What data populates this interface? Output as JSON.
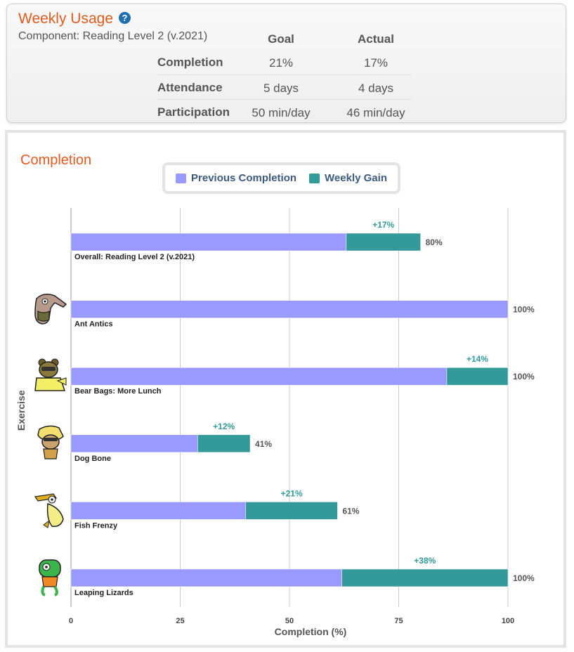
{
  "usage": {
    "title": "Weekly Usage",
    "help_icon": "question-circle-icon",
    "component": "Component: Reading Level 2 (v.2021)",
    "columns": [
      "Goal",
      "Actual"
    ],
    "rows": [
      {
        "label": "Completion",
        "goal": "21%",
        "actual": "17%"
      },
      {
        "label": "Attendance",
        "goal": "5 days",
        "actual": "4 days"
      },
      {
        "label": "Participation",
        "goal": "50 min/day",
        "actual": "46 min/day"
      }
    ]
  },
  "chart": {
    "title": "Completion",
    "legend": {
      "previous": "Previous Completion",
      "gain": "Weekly Gain"
    },
    "colors": {
      "previous": "#9999ff",
      "gain": "#339999",
      "accent": "#e35a1e"
    }
  },
  "chart_data": {
    "type": "bar",
    "orientation": "horizontal",
    "stacked": true,
    "title": "Completion",
    "xlabel": "Completion (%)",
    "ylabel": "Exercise",
    "xlim": [
      0,
      100
    ],
    "xticks": [
      "0",
      "25",
      "50",
      "75",
      "100"
    ],
    "grid": true,
    "legend_position": "top-center",
    "categories": [
      "Overall: Reading Level 2 (v.2021)",
      "Ant Antics",
      "Bear Bags: More Lunch",
      "Dog Bone",
      "Fish Frenzy",
      "Leaping Lizards"
    ],
    "series": [
      {
        "name": "Previous Completion",
        "values": [
          63,
          100,
          86,
          29,
          40,
          62
        ]
      },
      {
        "name": "Weekly Gain",
        "values": [
          17,
          0,
          14,
          12,
          21,
          38
        ]
      }
    ],
    "gain_labels": [
      "+17%",
      "",
      "+14%",
      "+12%",
      "+21%",
      "+38%"
    ],
    "total_labels": [
      "80%",
      "100%",
      "100%",
      "41%",
      "61%",
      "100%"
    ],
    "avatars": [
      "",
      "anteater-avatar-icon",
      "bear-avatar-icon",
      "dog-avatar-icon",
      "pelican-avatar-icon",
      "lizard-avatar-icon"
    ]
  }
}
